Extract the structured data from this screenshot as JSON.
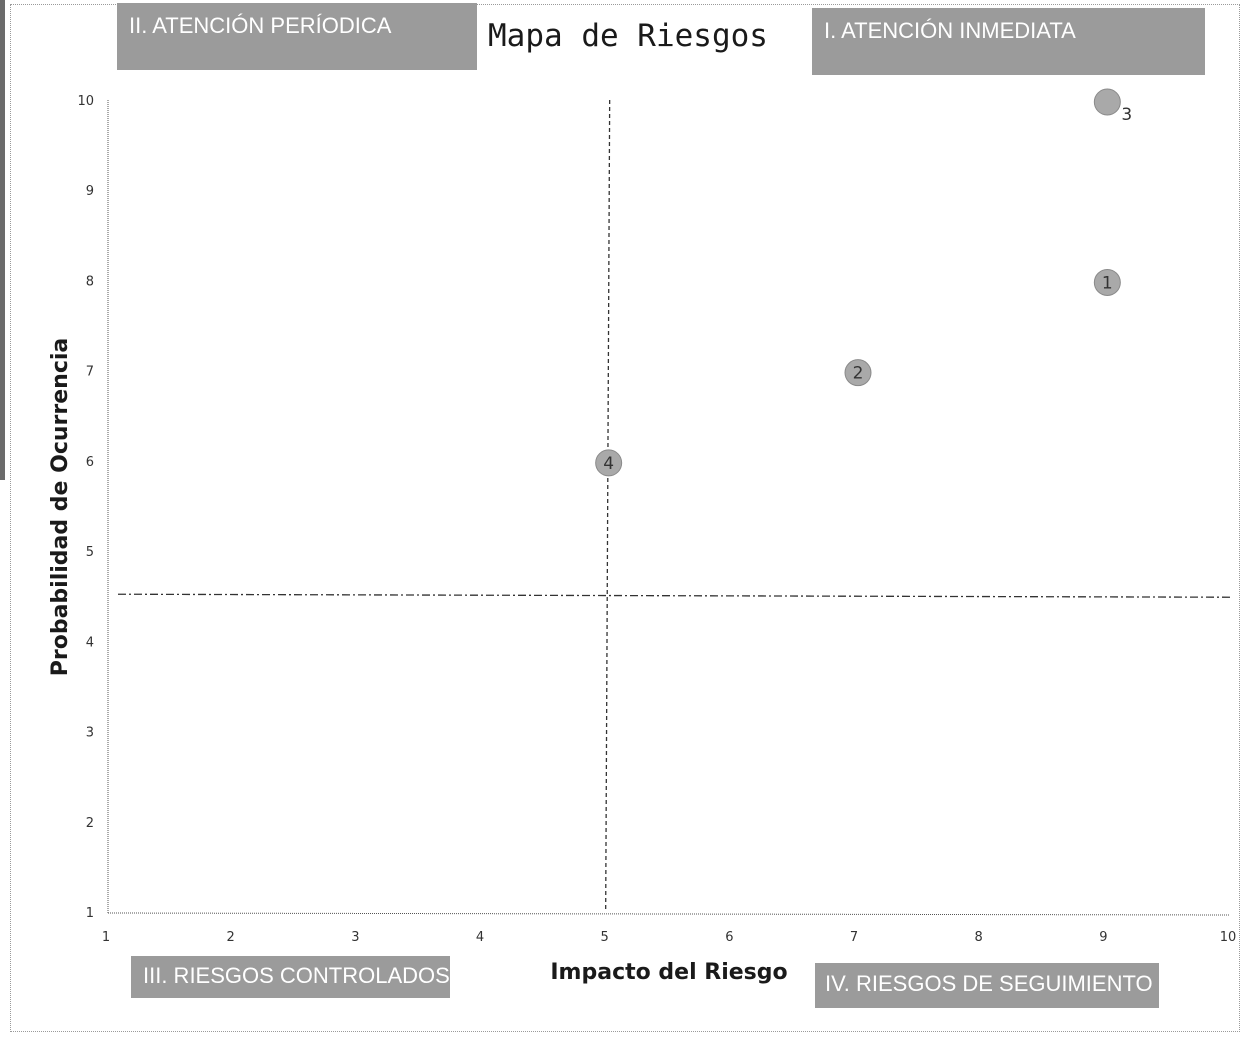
{
  "chart_data": {
    "type": "scatter",
    "title": "Mapa de Riesgos",
    "xlabel": "Impacto del Riesgo",
    "ylabel": "Probabilidad de Ocurrencia",
    "xlim": [
      1,
      10
    ],
    "ylim": [
      1,
      10
    ],
    "xticks": [
      1,
      2,
      3,
      4,
      5,
      6,
      7,
      8,
      9,
      10
    ],
    "yticks": [
      1,
      2,
      3,
      4,
      5,
      6,
      7,
      8,
      9,
      10
    ],
    "points": [
      {
        "label": "1",
        "x": 9,
        "y": 8
      },
      {
        "label": "2",
        "x": 7,
        "y": 7
      },
      {
        "label": "3",
        "x": 9,
        "y": 10
      },
      {
        "label": "4",
        "x": 5,
        "y": 6
      }
    ],
    "threshold_x": 5,
    "threshold_y": 4.5,
    "grid": false,
    "quadrants": {
      "top_left": "II. ATENCIÓN PERÍODICA",
      "top_right": "I. ATENCIÓN INMEDIATA",
      "bottom_left": "III. RIESGOS CONTROLADOS",
      "bottom_right": "IV. RIESGOS DE SEGUIMIENTO"
    },
    "quadrant_color": "#9b9b9b",
    "point_color": "#a9a9a9"
  }
}
